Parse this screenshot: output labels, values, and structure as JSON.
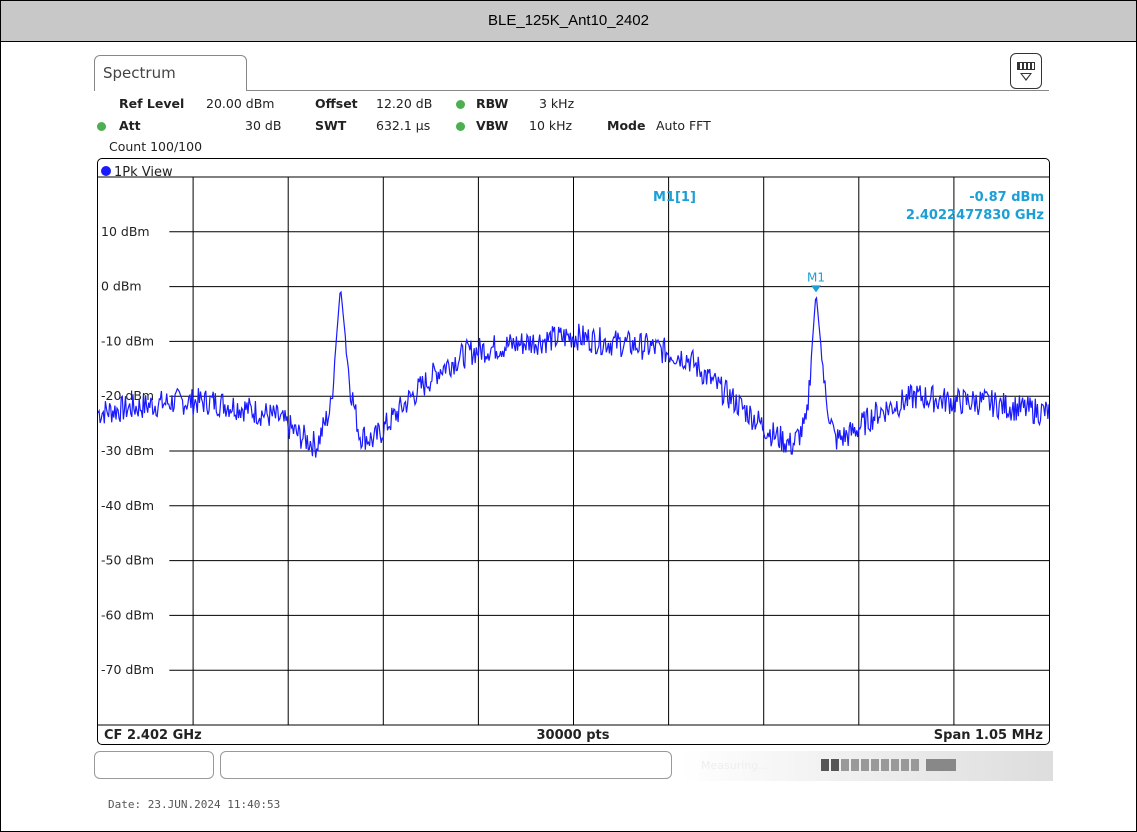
{
  "window": {
    "title": "BLE_125K_Ant10_2402"
  },
  "tab": {
    "label": "Spectrum"
  },
  "settings": {
    "ref_level_label": "Ref Level",
    "ref_level_value": "20.00 dBm",
    "offset_label": "Offset",
    "offset_value": "12.20 dB",
    "rbw_label": "RBW",
    "rbw_value": "3 kHz",
    "att_label": "Att",
    "att_value": "30 dB",
    "swt_label": "SWT",
    "swt_value": "632.1 µs",
    "vbw_label": "VBW",
    "vbw_value": "10 kHz",
    "mode_label": "Mode",
    "mode_value": "Auto FFT",
    "count": "Count 100/100"
  },
  "trace": {
    "view_label": "1Pk View",
    "color": "#1a1aff"
  },
  "marker": {
    "name": "M1[1]",
    "level": "-0.87 dBm",
    "freq": "2.4022477830 GHz",
    "tag": "M1",
    "color": "#1a9fd6"
  },
  "footer": {
    "cf": "CF 2.402 GHz",
    "points": "30000 pts",
    "span": "Span 1.05 MHz"
  },
  "status": {
    "text": "Measuring..."
  },
  "date": "Date: 23.JUN.2024  11:40:53",
  "chart_data": {
    "type": "line",
    "ylabel_unit": "dBm",
    "ylim": [
      -80,
      20
    ],
    "xlim": [
      0,
      10
    ],
    "x_unit": "grid divisions",
    "y_ticks": [
      {
        "value": 10,
        "label": "10 dBm"
      },
      {
        "value": 0,
        "label": "0 dBm"
      },
      {
        "value": -10,
        "label": "-10 dBm"
      },
      {
        "value": -20,
        "label": "-20 dBm"
      },
      {
        "value": -30,
        "label": "-30 dBm"
      },
      {
        "value": -40,
        "label": "-40 dBm"
      },
      {
        "value": -50,
        "label": "-50 dBm"
      },
      {
        "value": -60,
        "label": "-60 dBm"
      },
      {
        "value": -70,
        "label": "-70 dBm"
      }
    ],
    "grid": true,
    "series": [
      {
        "x": [
          0,
          0.4,
          0.8,
          1.2,
          1.5,
          1.9,
          2.1,
          2.3,
          2.45,
          2.55,
          2.65,
          2.75,
          2.9,
          3.1,
          3.3,
          3.6,
          3.9,
          4.2,
          4.6,
          5.0,
          5.3,
          5.8,
          6.2,
          6.5,
          6.9,
          7.1,
          7.3,
          7.45,
          7.55,
          7.65,
          7.75,
          7.9,
          8.2,
          8.6,
          9.0,
          9.3,
          9.6,
          10.0
        ],
        "values": [
          -23,
          -22,
          -21,
          -21,
          -22,
          -24,
          -27,
          -29,
          -22,
          0,
          -18,
          -27,
          -28,
          -24,
          -20,
          -15,
          -12,
          -11,
          -10,
          -9,
          -10,
          -11,
          -13,
          -18,
          -24,
          -27,
          -29,
          -25,
          -1,
          -20,
          -28,
          -27,
          -23,
          -20,
          -21,
          -21,
          -22,
          -23
        ]
      }
    ],
    "marker": {
      "x": 7.55,
      "y": -0.87
    }
  }
}
